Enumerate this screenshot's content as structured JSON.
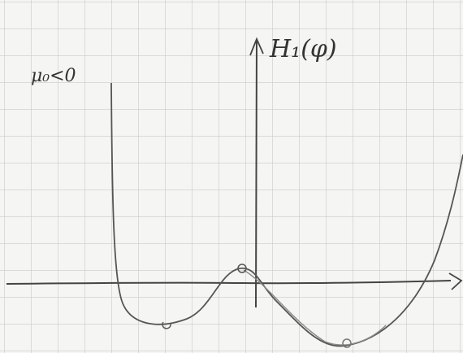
{
  "labels": {
    "condition": "μ₀<0",
    "axis": "H₁(φ)"
  }
}
